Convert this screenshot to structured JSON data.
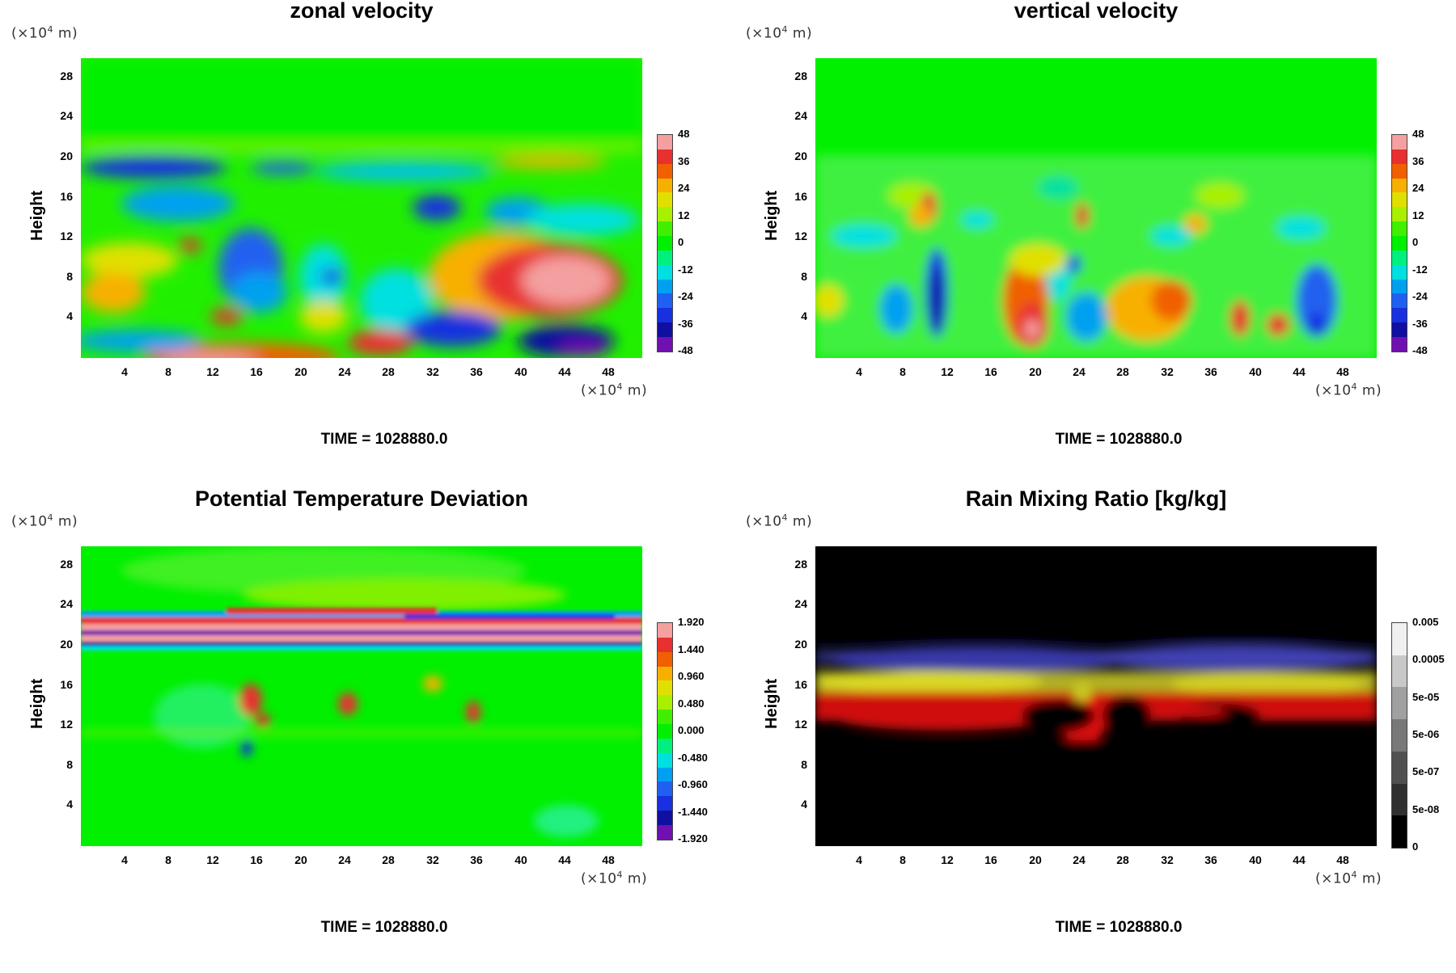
{
  "panels": [
    {
      "id": "zonal",
      "title": "zonal velocity",
      "ylabel": "Height",
      "y_scale_label": "(×10",
      "y_scale_exp": "4",
      "y_scale_unit": " m)",
      "x_scale_label": "(×10",
      "x_scale_exp": "4",
      "x_scale_unit": " m)",
      "time_label": "TIME = 1028880.0",
      "colorbar_labels": [
        "48",
        "36",
        "24",
        "12",
        "0",
        "-12",
        "-24",
        "-36",
        "-48"
      ]
    },
    {
      "id": "vertical",
      "title": "vertical velocity",
      "ylabel": "Height",
      "y_scale_label": "(×10",
      "y_scale_exp": "4",
      "y_scale_unit": " m)",
      "x_scale_label": "(×10",
      "x_scale_exp": "4",
      "x_scale_unit": " m)",
      "time_label": "TIME = 1028880.0",
      "colorbar_labels": [
        "48",
        "36",
        "24",
        "12",
        "0",
        "-12",
        "-24",
        "-36",
        "-48"
      ]
    },
    {
      "id": "theta",
      "title": "Potential Temperature Deviation",
      "ylabel": "Height",
      "y_scale_label": "(×10",
      "y_scale_exp": "4",
      "y_scale_unit": " m)",
      "x_scale_label": "(×10",
      "x_scale_exp": "4",
      "x_scale_unit": " m)",
      "time_label": "TIME = 1028880.0",
      "colorbar_labels": [
        "1.920",
        "1.440",
        "0.960",
        "0.480",
        "0.000",
        "-0.480",
        "-0.960",
        "-1.440",
        "-1.920"
      ]
    },
    {
      "id": "rain",
      "title": "Rain Mixing Ratio [kg/kg]",
      "ylabel": "Height",
      "y_scale_label": "(×10",
      "y_scale_exp": "4",
      "y_scale_unit": " m)",
      "x_scale_label": "(×10",
      "x_scale_exp": "4",
      "x_scale_unit": " m)",
      "time_label": "TIME = 1028880.0",
      "colorbar_labels": [
        "0.005",
        "0.0005",
        "5e-05",
        "5e-06",
        "5e-07",
        "5e-08",
        "0"
      ]
    }
  ],
  "chart_data": [
    {
      "type": "heatmap",
      "title": "zonal velocity",
      "ylabel": "Height",
      "x_ticks": [
        4,
        8,
        12,
        16,
        20,
        24,
        28,
        32,
        36,
        40,
        44,
        48
      ],
      "y_ticks": [
        4,
        8,
        12,
        16,
        20,
        24,
        28
      ],
      "xlim": [
        0,
        51
      ],
      "ylim": [
        0,
        30
      ],
      "color_levels": [
        48,
        36,
        24,
        12,
        0,
        -12,
        -24,
        -36,
        -48
      ],
      "time": "TIME = 1028880.0"
    },
    {
      "type": "heatmap",
      "title": "vertical velocity",
      "ylabel": "Height",
      "x_ticks": [
        4,
        8,
        12,
        16,
        20,
        24,
        28,
        32,
        36,
        40,
        44,
        48
      ],
      "y_ticks": [
        4,
        8,
        12,
        16,
        20,
        24,
        28
      ],
      "xlim": [
        0,
        51
      ],
      "ylim": [
        0,
        30
      ],
      "color_levels": [
        48,
        36,
        24,
        12,
        0,
        -12,
        -24,
        -36,
        -48
      ],
      "time": "TIME = 1028880.0"
    },
    {
      "type": "heatmap",
      "title": "Potential Temperature Deviation",
      "ylabel": "Height",
      "x_ticks": [
        4,
        8,
        12,
        16,
        20,
        24,
        28,
        32,
        36,
        40,
        44,
        48
      ],
      "y_ticks": [
        4,
        8,
        12,
        16,
        20,
        24,
        28
      ],
      "xlim": [
        0,
        51
      ],
      "ylim": [
        0,
        30
      ],
      "color_levels": [
        1.92,
        1.44,
        0.96,
        0.48,
        0.0,
        -0.48,
        -0.96,
        -1.44,
        -1.92
      ],
      "time": "TIME = 1028880.0"
    },
    {
      "type": "heatmap",
      "title": "Rain Mixing Ratio [kg/kg]",
      "ylabel": "Height",
      "x_ticks": [
        4,
        8,
        12,
        16,
        20,
        24,
        28,
        32,
        36,
        40,
        44,
        48
      ],
      "y_ticks": [
        4,
        8,
        12,
        16,
        20,
        24,
        28
      ],
      "xlim": [
        0,
        51
      ],
      "ylim": [
        0,
        30
      ],
      "color_levels": [
        "0.005",
        "0.0005",
        "5e-05",
        "5e-06",
        "5e-07",
        "5e-08",
        "0"
      ],
      "color_scale": "log",
      "time": "TIME = 1028880.0"
    }
  ],
  "colors": {
    "rainbow": [
      "#f4a0a0",
      "#e83030",
      "#f06000",
      "#f8b000",
      "#e0e000",
      "#a8f000",
      "#40f000",
      "#00f000",
      "#00f080",
      "#00e0e0",
      "#00a0f0",
      "#2060f0",
      "#1830e0",
      "#1010a0",
      "#7010b0"
    ],
    "gray": [
      "#f0f0f0",
      "#c8c8c8",
      "#a0a0a0",
      "#787878",
      "#505050",
      "#303030",
      "#000000"
    ],
    "field_green": "#00f000"
  }
}
